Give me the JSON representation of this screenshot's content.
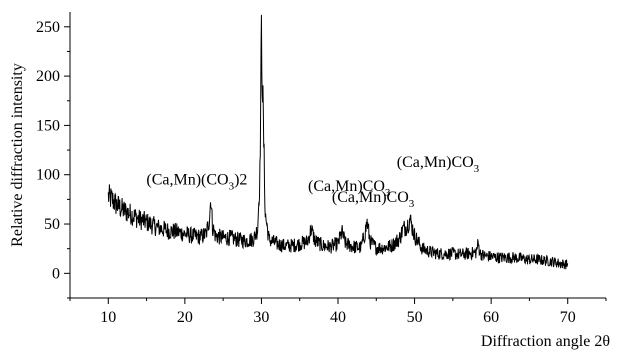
{
  "chart_data": {
    "type": "line",
    "title": "",
    "xlabel": "Diffraction angle 2θ",
    "ylabel": "Relative diffraction intensity",
    "xlim": [
      5,
      75
    ],
    "ylim": [
      -25,
      265
    ],
    "x_ticks": [
      10,
      20,
      30,
      40,
      50,
      60,
      70
    ],
    "y_ticks": [
      0,
      50,
      100,
      150,
      200,
      250
    ],
    "grid": false,
    "legend": "none",
    "line_color": "#000000",
    "series": [
      {
        "x": [
          10,
          10.5,
          11,
          12,
          13,
          14,
          15,
          16,
          17,
          18,
          19,
          20,
          21,
          22,
          22.8,
          23.2,
          23.4,
          23.6,
          24,
          25,
          26,
          27,
          28,
          29,
          29.5,
          29.8,
          30.0,
          30.2,
          30.5,
          31,
          32,
          33,
          34,
          35,
          36,
          36.5,
          37,
          38,
          39,
          40,
          40.5,
          41,
          42,
          43,
          43.5,
          43.8,
          44.2,
          45,
          46,
          47,
          48,
          48.5,
          49,
          49.4,
          50,
          51,
          52,
          53,
          54,
          55,
          56,
          57,
          58,
          58.3,
          58.6,
          59,
          60,
          61,
          62,
          63,
          64,
          65,
          66,
          67,
          68,
          69,
          70
        ],
        "y": [
          78,
          75,
          70,
          64,
          60,
          55,
          52,
          48,
          45,
          43,
          42,
          40,
          38,
          37,
          40,
          55,
          78,
          48,
          38,
          36,
          36,
          34,
          33,
          35,
          45,
          100,
          242,
          170,
          60,
          34,
          30,
          28,
          28,
          30,
          32,
          45,
          33,
          28,
          27,
          30,
          42,
          30,
          27,
          26,
          40,
          52,
          32,
          26,
          26,
          28,
          35,
          45,
          48,
          55,
          38,
          25,
          22,
          20,
          20,
          20,
          19,
          20,
          21,
          30,
          20,
          18,
          17,
          16,
          16,
          16,
          15,
          14,
          14,
          13,
          12,
          10,
          9
        ]
      }
    ],
    "annotations": [
      {
        "main": "(Ca,Mn)CO",
        "sub": "3",
        "x": 30.0,
        "y": 242,
        "tail": ""
      },
      {
        "main": "(Ca,Mn)(CO",
        "sub": "3",
        "x": 23.4,
        "y": 78,
        "tail": ")2"
      },
      {
        "main": "(Ca,Mn)CO",
        "sub": "3",
        "x": 36.5,
        "y": 45,
        "tail": ""
      },
      {
        "main": "(Ca,Mn)CO",
        "sub": "3",
        "x": 43.8,
        "y": 52,
        "tail": ""
      },
      {
        "main": "(Ca,Mn)CO",
        "sub": "3",
        "x": 49.4,
        "y": 55,
        "tail": ""
      }
    ]
  }
}
